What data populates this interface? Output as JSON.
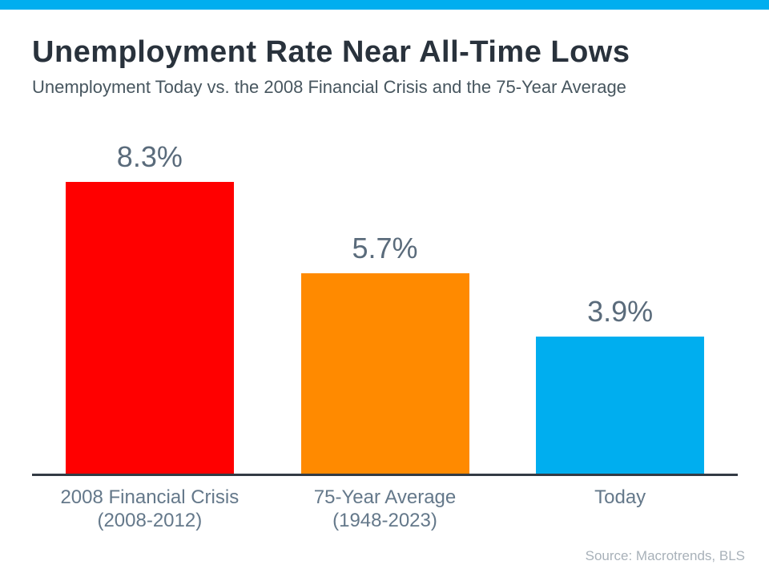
{
  "page": {
    "background_color": "#FFFFFF",
    "accent_color": "#00AEEF"
  },
  "header": {
    "title": "Unemployment Rate Near All-Time Lows",
    "subtitle": "Unemployment Today vs. the 2008 Financial Crisis and the 75-Year Average"
  },
  "footer": {
    "source": "Source: Macrotrends, BLS"
  },
  "colors": {
    "title_text": "#29323C",
    "subtitle_text": "#47565F",
    "value_label_text": "#5A6B7B",
    "category_label_text": "#64788A",
    "axis_line": "#333B44",
    "source_text": "#A8B1B9"
  },
  "chart_data": {
    "type": "bar",
    "title": "Unemployment Rate Near All-Time Lows",
    "subtitle": "Unemployment Today vs. the 2008 Financial Crisis and the 75-Year Average",
    "categories": [
      "2008 Financial Crisis (2008-2012)",
      "75-Year Average (1948-2023)",
      "Today"
    ],
    "category_lines": [
      [
        "2008 Financial Crisis",
        "(2008-2012)"
      ],
      [
        "75-Year Average",
        "(1948-2023)"
      ],
      [
        "Today"
      ]
    ],
    "values": [
      8.3,
      5.7,
      3.9
    ],
    "value_labels": [
      "8.3%",
      "5.7%",
      "3.9%"
    ],
    "bar_colors": [
      "#FF0000",
      "#FF8A00",
      "#00AEEF"
    ],
    "unit": "%",
    "ylim": [
      0,
      9
    ],
    "grid": false,
    "legend_position": "none",
    "source": "Source: Macrotrends, BLS"
  }
}
